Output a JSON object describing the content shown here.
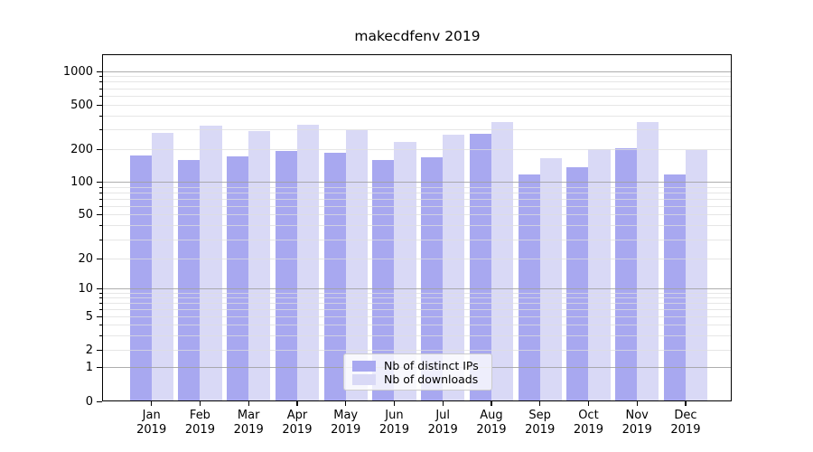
{
  "chart_data": {
    "type": "bar",
    "title": "makecdfenv 2019",
    "categories": [
      "Jan 2019",
      "Feb 2019",
      "Mar 2019",
      "Apr 2019",
      "May 2019",
      "Jun 2019",
      "Jul 2019",
      "Aug 2019",
      "Sep 2019",
      "Oct 2019",
      "Nov 2019",
      "Dec 2019"
    ],
    "series": [
      {
        "name": "Nb of distinct IPs",
        "color": "#a8a8f0",
        "values": [
          175,
          160,
          172,
          195,
          185,
          160,
          170,
          275,
          117,
          138,
          205,
          118
        ]
      },
      {
        "name": "Nb of downloads",
        "color": "#d9d9f6",
        "values": [
          280,
          325,
          290,
          330,
          295,
          235,
          270,
          350,
          165,
          200,
          352,
          199
        ]
      }
    ],
    "xlabel": "",
    "ylabel": "",
    "yscale": "log-like (compressed near zero, 0 baseline shown)",
    "y_ticks": [
      0,
      1,
      2,
      5,
      10,
      20,
      50,
      100,
      200,
      500,
      1000
    ],
    "ylim": [
      0,
      1400
    ],
    "grid": "on",
    "legend_position": "lower center"
  },
  "axis_colors": {
    "spine": "#000000",
    "grid_minor": "#e2e2e2",
    "grid_major": "#a0a0a0",
    "legend_border": "#cccccc"
  }
}
